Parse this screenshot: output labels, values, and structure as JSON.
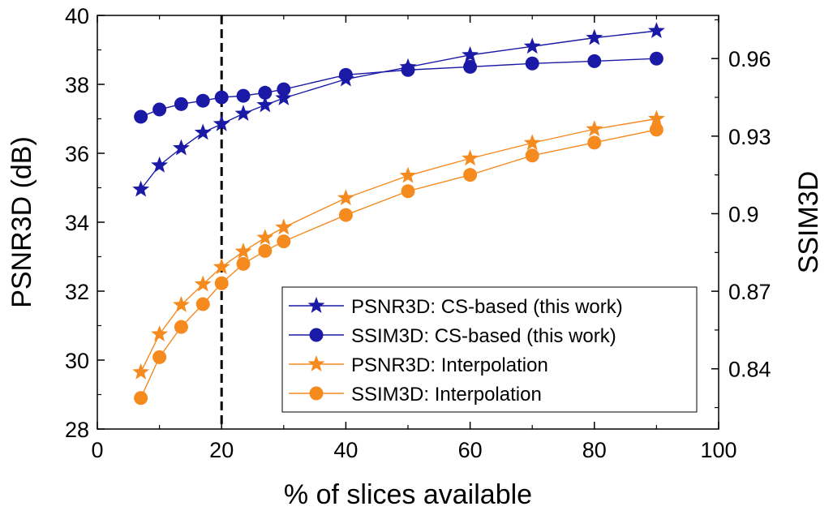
{
  "chart_data": {
    "type": "line",
    "xlabel": "% of slices available",
    "ylabel": "PSNR3D (dB)",
    "y2label": "SSIM3D",
    "xlim": [
      0,
      100
    ],
    "ylim": [
      28,
      40
    ],
    "y2lim": [
      0.8167,
      0.9767
    ],
    "xticks": [
      0,
      20,
      40,
      60,
      80,
      100
    ],
    "yticks": [
      28,
      30,
      32,
      34,
      36,
      38,
      40
    ],
    "y2ticks": [
      0.84,
      0.87,
      0.9,
      0.93,
      0.96
    ],
    "reference_line_x": 20,
    "grid": false,
    "legend_position": "bottom-right",
    "series": [
      {
        "name": "PSNR3D: CS-based (this work)",
        "axis": "left",
        "marker": "star",
        "color": "#1a1aa6",
        "x": [
          7,
          10,
          13.5,
          17,
          20,
          23.5,
          27,
          30,
          40,
          50,
          60,
          70,
          80,
          90
        ],
        "values": [
          34.95,
          35.65,
          36.15,
          36.6,
          36.85,
          37.15,
          37.4,
          37.6,
          38.15,
          38.5,
          38.85,
          39.1,
          39.35,
          39.55
        ]
      },
      {
        "name": "SSIM3D: CS-based (this work)",
        "axis": "right",
        "marker": "circle",
        "color": "#1a1aa6",
        "x": [
          7,
          10,
          13.5,
          17,
          20,
          23.5,
          27,
          30,
          40,
          50,
          60,
          70,
          80,
          90
        ],
        "values": [
          0.9375,
          0.9403,
          0.9424,
          0.9437,
          0.945,
          0.9456,
          0.9468,
          0.9481,
          0.9537,
          0.9556,
          0.9568,
          0.9581,
          0.959,
          0.96
        ]
      },
      {
        "name": "PSNR3D: Interpolation",
        "axis": "left",
        "marker": "star",
        "color": "#f58a1f",
        "x": [
          7,
          10,
          13.5,
          17,
          20,
          23.5,
          27,
          30,
          40,
          50,
          60,
          70,
          80,
          90
        ],
        "values": [
          29.65,
          30.75,
          31.6,
          32.2,
          32.7,
          33.15,
          33.55,
          33.85,
          34.7,
          35.35,
          35.85,
          36.3,
          36.7,
          37.0
        ]
      },
      {
        "name": "SSIM3D: Interpolation",
        "axis": "right",
        "marker": "circle",
        "color": "#f58a1f",
        "x": [
          7,
          10,
          13.5,
          17,
          20,
          23.5,
          27,
          30,
          40,
          50,
          60,
          70,
          80,
          90
        ],
        "values": [
          0.8287,
          0.8445,
          0.8562,
          0.865,
          0.8731,
          0.8806,
          0.8856,
          0.8893,
          0.8995,
          0.9087,
          0.915,
          0.9225,
          0.9275,
          0.9325
        ]
      }
    ]
  }
}
